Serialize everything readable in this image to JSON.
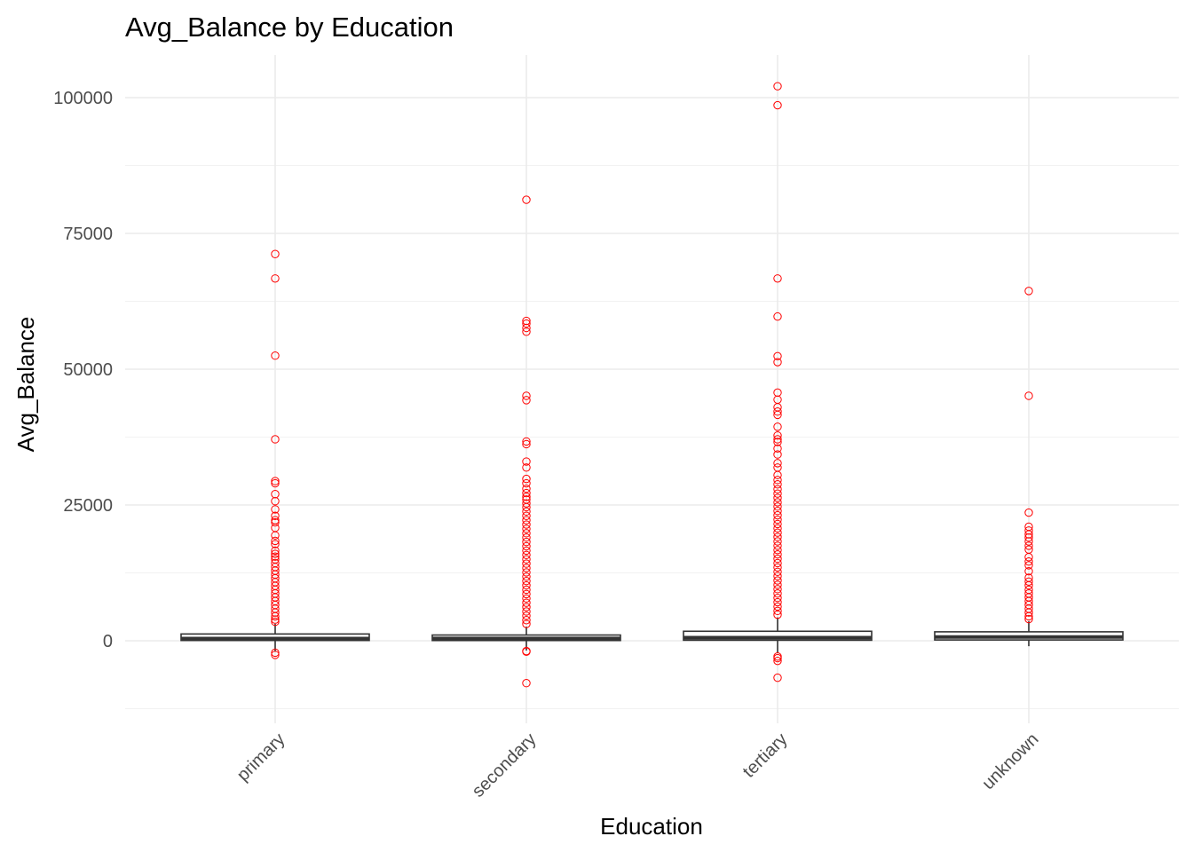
{
  "chart_data": {
    "type": "boxplot",
    "title": "Avg_Balance by Education",
    "xlabel": "Education",
    "ylabel": "Avg_Balance",
    "categories": [
      "primary",
      "secondary",
      "tertiary",
      "unknown"
    ],
    "ylim": [
      -12500,
      107500
    ],
    "y_ticks": [
      0,
      25000,
      50000,
      75000,
      100000
    ],
    "y_tick_labels": [
      "0",
      "25000",
      "50000",
      "75000",
      "100000"
    ],
    "grid": true,
    "theme": "minimal",
    "outlier_color": "#ff0000",
    "box_color": "#333333",
    "boxes": [
      {
        "category": "primary",
        "lower_whisker": -2000,
        "q1": 60,
        "median": 400,
        "q3": 1250,
        "upper_whisker": 3100,
        "outliers": [
          71200,
          66700,
          52500,
          37100,
          29400,
          29000,
          27000,
          25700,
          24200,
          23000,
          22200,
          21800,
          20800,
          19400,
          18400,
          17800,
          16600,
          16000,
          15500,
          15000,
          14300,
          13600,
          12900,
          12200,
          11500,
          10800,
          10100,
          9400,
          8700,
          8000,
          7300,
          6600,
          5900,
          5200,
          4500,
          3900,
          3500,
          -2200,
          -2600
        ]
      },
      {
        "category": "secondary",
        "lower_whisker": -1800,
        "q1": 50,
        "median": 420,
        "q3": 1060,
        "upper_whisker": 2600,
        "outliers": [
          81200,
          58900,
          58400,
          57600,
          56900,
          45100,
          44300,
          36700,
          36200,
          33000,
          31900,
          29800,
          29000,
          28000,
          27200,
          26500,
          26000,
          25300,
          24600,
          23800,
          23000,
          22200,
          21400,
          20600,
          19800,
          19000,
          18200,
          17400,
          16600,
          15800,
          15000,
          14200,
          13400,
          12600,
          11800,
          11000,
          10200,
          9400,
          8600,
          7800,
          7000,
          6200,
          5400,
          4600,
          3800,
          3100,
          -1900,
          -2000,
          -7800
        ]
      },
      {
        "category": "tertiary",
        "lower_whisker": -2200,
        "q1": 100,
        "median": 580,
        "q3": 1750,
        "upper_whisker": 4300,
        "outliers": [
          102100,
          98600,
          66700,
          59700,
          52400,
          51300,
          45700,
          44400,
          43000,
          42200,
          41600,
          39400,
          37800,
          37100,
          36600,
          35400,
          34300,
          32700,
          31900,
          30500,
          29600,
          28800,
          27900,
          27100,
          26300,
          25500,
          24700,
          23900,
          23100,
          22300,
          21500,
          20700,
          19900,
          19100,
          18300,
          17500,
          16700,
          15900,
          15100,
          14300,
          13500,
          12700,
          11900,
          11100,
          10300,
          9500,
          8700,
          7900,
          7100,
          6300,
          5500,
          4800,
          -2900,
          -3200,
          -3700,
          -6800
        ]
      },
      {
        "category": "unknown",
        "lower_whisker": -1000,
        "q1": 150,
        "median": 700,
        "q3": 1650,
        "upper_whisker": 3600,
        "outliers": [
          64400,
          45100,
          23600,
          21000,
          20300,
          19600,
          19000,
          18300,
          17500,
          16800,
          15400,
          14600,
          13900,
          12800,
          11600,
          10900,
          10200,
          9400,
          8700,
          8000,
          7300,
          6600,
          5900,
          5200,
          4500,
          4000
        ]
      }
    ]
  }
}
